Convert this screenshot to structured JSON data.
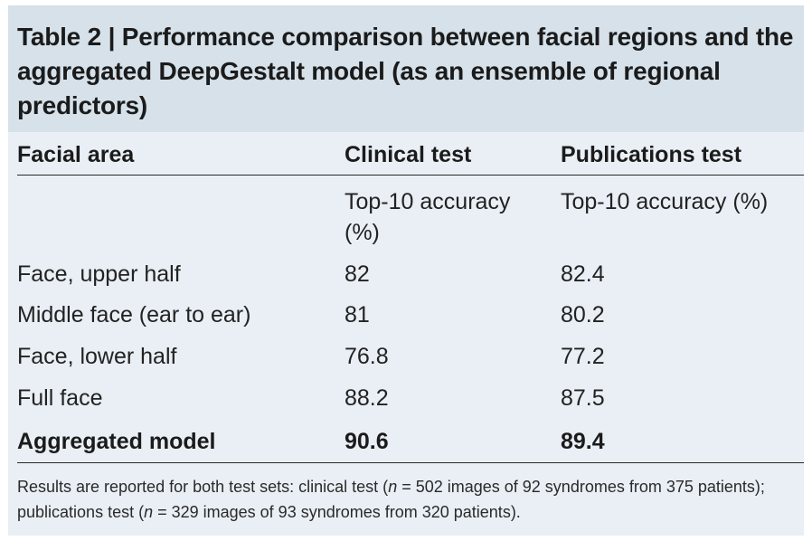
{
  "table": {
    "title": "Table 2 | Performance comparison between facial regions and the aggregated DeepGestalt model (as an ensemble of regional predictors)",
    "headers": [
      "Facial area",
      "Clinical test",
      "Publications test"
    ],
    "subheaders": [
      "",
      "Top-10 accuracy (%)",
      "Top-10 accuracy (%)"
    ],
    "rows": [
      {
        "area": "Face, upper half",
        "clinical": "82",
        "publications": "82.4"
      },
      {
        "area": "Middle face (ear to ear)",
        "clinical": "81",
        "publications": "80.2"
      },
      {
        "area": "Face, lower half",
        "clinical": "76.8",
        "publications": "77.2"
      },
      {
        "area": "Full face",
        "clinical": "88.2",
        "publications": "87.5"
      },
      {
        "area": "Aggregated model",
        "clinical": "90.6",
        "publications": "89.4",
        "bold": true
      }
    ],
    "footnote": {
      "part1": "Results are reported for both test sets: clinical test (",
      "n1_symbol": "n",
      "part2": " = 502 images of 92 syndromes from 375 patients); publications test (",
      "n2_symbol": "n",
      "part3": " = 329 images of 93 syndromes from 320 patients)."
    },
    "colors": {
      "title_band": "#d6e1ea",
      "body_band": "#e9eff5",
      "rules": "#2a2a2a"
    }
  }
}
